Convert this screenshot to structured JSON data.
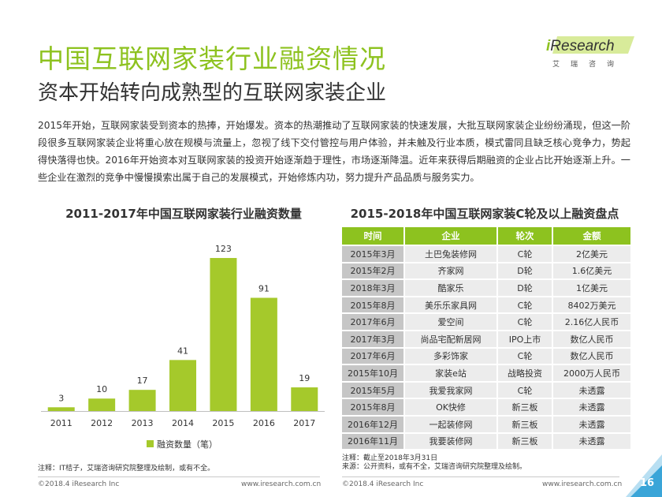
{
  "header": {
    "title": "中国互联网家装行业融资情况",
    "subtitle": "资本开始转向成熟型的互联网家装企业"
  },
  "logo": {
    "prefix": "i",
    "name": "Research",
    "tagline": "艾瑞咨询"
  },
  "intro": "2015年开始，互联网家装受到资本的热捧，开始爆发。资本的热潮推动了互联网家装的快速发展，大批互联网家装企业纷纷涌现，但这一阶段很多互联网家装企业将重心放在规模与流量上，忽视了线下交付管控与用户体验，并未触及行业本质，模式雷同且缺乏核心竞争力，势起得快落得也快。2016年开始资本对互联网家装的投资开始逐渐趋于理性，市场逐渐降温。近年来获得后期融资的企业占比开始逐渐上升。一些企业在激烈的竞争中慢慢摸索出属于自己的发展模式，开始修炼内功，努力提升产品品质与服务实力。",
  "chart_data": {
    "type": "bar",
    "title": "2011-2017年中国互联网家装行业融资数量",
    "categories": [
      "2011",
      "2012",
      "2013",
      "2014",
      "2015",
      "2016",
      "2017"
    ],
    "series": [
      {
        "name": "融资数量（笔）",
        "values": [
          3,
          10,
          17,
          41,
          123,
          91,
          19
        ],
        "color": "#a5c92b"
      }
    ],
    "ylim": [
      0,
      130
    ],
    "grid": false,
    "legend": "bottom-center"
  },
  "table": {
    "title": "2015-2018年中国互联网家装C轮及以上融资盘点",
    "headers": [
      "时间",
      "企业",
      "轮次",
      "金额"
    ],
    "rows": [
      [
        "2015年3月",
        "土巴兔装修网",
        "C轮",
        "2亿美元"
      ],
      [
        "2015年2月",
        "齐家网",
        "D轮",
        "1.6亿美元"
      ],
      [
        "2018年3月",
        "酷家乐",
        "D轮",
        "1亿美元"
      ],
      [
        "2015年8月",
        "美乐乐家具网",
        "C轮",
        "8402万美元"
      ],
      [
        "2017年6月",
        "爱空间",
        "C轮",
        "2.16亿人民币"
      ],
      [
        "2017年3月",
        "尚品宅配新居网",
        "IPO上市",
        "数亿人民币"
      ],
      [
        "2017年6月",
        "多彩饰家",
        "C轮",
        "数亿人民币"
      ],
      [
        "2015年10月",
        "家装e站",
        "战略投资",
        "2000万人民币"
      ],
      [
        "2015年5月",
        "我爱我家网",
        "C轮",
        "未透露"
      ],
      [
        "2015年8月",
        "OK快修",
        "新三板",
        "未透露"
      ],
      [
        "2016年12月",
        "一起装修网",
        "新三板",
        "未透露"
      ],
      [
        "2016年11月",
        "我要装修网",
        "新三板",
        "未透露"
      ]
    ]
  },
  "notes": {
    "left": "注释：IT桔子，艾瑞咨询研究院整理及绘制，或有不全。",
    "right_line1": "注释：截止至2018年3月31日",
    "right_line2": "来源：公开资料，或有不全，艾瑞咨询研究院整理及绘制。"
  },
  "footer": {
    "left_copyright": "©2018.4 iResearch Inc",
    "left_url": "www.iresearch.com.cn",
    "right_copyright": "©2018.4 iResearch Inc",
    "right_url": "www.iresearch.com.cn",
    "page_number": "16"
  },
  "colors": {
    "accent": "#8dc21f",
    "bar": "#a5c92b",
    "table_header": "#8dc21f",
    "corner_dark": "#3aa5d8",
    "corner_light": "#b8dff2"
  }
}
